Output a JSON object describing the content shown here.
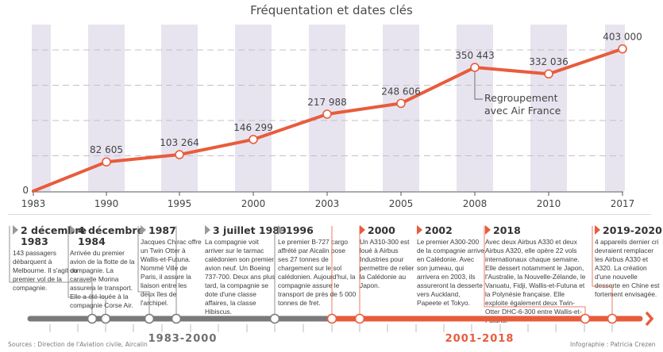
{
  "title": "Fréquentation et dates clés",
  "chart_data": {
    "type": "line",
    "title": "Fréquentation et dates clés",
    "xlabel": "",
    "ylabel": "",
    "categories": [
      "1983",
      "1990",
      "1995",
      "2000",
      "2003",
      "2005",
      "2008",
      "2010",
      "2017"
    ],
    "values": [
      0,
      82605,
      103264,
      146299,
      217988,
      248606,
      350443,
      332036,
      403000
    ],
    "value_labels": [
      "0",
      "82 605",
      "103 264",
      "146 299",
      "217 988",
      "248 606",
      "350 443",
      "332 036",
      "403 000"
    ],
    "ylim": [
      0,
      400000
    ],
    "gridlines": [
      100000,
      200000,
      300000,
      400000
    ],
    "grid": true,
    "series_color": "#e85c3c",
    "band_color": "#e8e4ef",
    "annotations": [
      {
        "x": "2008",
        "text_lines": [
          "Regroupement",
          "avec Air France"
        ]
      }
    ]
  },
  "timeline": {
    "periods": [
      {
        "label": "1983-2000",
        "color": "#6f6f6f"
      },
      {
        "label": "2001-2018",
        "color": "#e85c3c"
      }
    ],
    "events": [
      {
        "heading": [
          "2 décembre",
          "1983"
        ],
        "body": "143 passagers débarquent à Melbourne. Il s'agit du premier vol de la compagnie.",
        "period": 0
      },
      {
        "heading": [
          "4 décembre",
          "1984"
        ],
        "body": "Arrivée du premier avion de la flotte de la compagnie. La caravelle <i>Morina</i> assurera le transport. Elle a été louée à la compagnie Corse Air.",
        "body_plain": "Arrivée du premier avion de la flotte de la compagnie. La caravelle Morina assurera le transport. Elle a été louée à la compagnie Corse Air.",
        "period": 0
      },
      {
        "heading": [
          "1987"
        ],
        "body_plain": "Jacques Chirac offre un Twin Otter à Wallis-et-Futuna. Nommé Ville de Paris, il assure la liaison entre les deux îles de l'archipel.",
        "period": 0
      },
      {
        "heading": [
          "3 juillet 1989"
        ],
        "body_plain": "La compagnie voit arriver sur le tarmac calédonien son premier avion neuf. Un Boeing 737-700. Deux ans plus tard, la compagnie se dote d'une classe affaires, la classe Hibiscus.",
        "period": 0
      },
      {
        "heading": [
          "1996"
        ],
        "body_plain": "Le premier B-727 cargo affrété par Aicalin pose ses 27 tonnes de chargement sur le sol calédonien. Aujourd'hui, la compagnie assure le transport de près de 5 000 tonnes de fret.",
        "period": 0
      },
      {
        "heading": [
          "2000"
        ],
        "body_plain": "Un A310-300 est loué à Airbus Industries pour permettre de relier la Calédonie au Japon.",
        "period": 1
      },
      {
        "heading": [
          "2002"
        ],
        "body_plain": "Le premier A300-200 de la compagnie arrive en Calédonie. Avec son jumeau, qui arrivera en 2003, ils assureront la desserte vers Auckland, Papeete et Tokyo.",
        "period": 1
      },
      {
        "heading": [
          "2018"
        ],
        "body_plain": "Avec deux Airbus A330 et deux Airbus A320, elle opère 22 vols internationaux chaque semaine. Elle dessert notamment le Japon, l'Australie, la Nouvelle-Zélande, le Vanuatu, Fidji, Wallis-et-Futuna et la Polynésie française. Elle exploite également deux Twin-Otter DHC-6-300 entre Wallis-et-Futuna.",
        "period": 1
      },
      {
        "heading": [
          "2019-2020"
        ],
        "body_plain": "4 appareils dernier cri devraient remplacer les Airbus A330 et A320. La création d'une nouvelle desserte en Chine est fortement envisagée.",
        "period": 1
      }
    ]
  },
  "footer": {
    "sources": "Sources : Direction de l'Aviation civile, Aircalin",
    "credit": "Infographie : Patricia Crezen"
  }
}
